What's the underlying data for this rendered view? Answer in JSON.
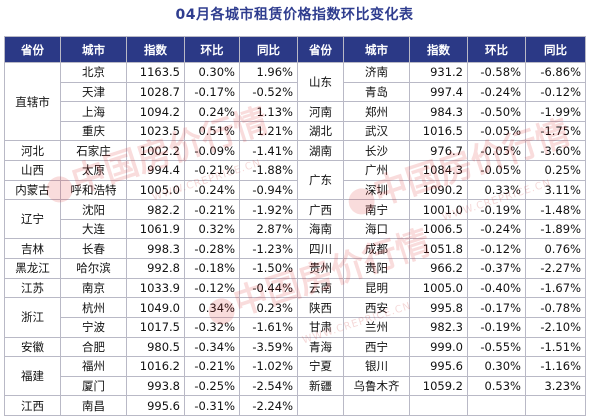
{
  "title": "04月各城市租赁价格指数环比变化表",
  "headers": [
    "省份",
    "城市",
    "指数",
    "环比",
    "同比",
    "省份",
    "城市",
    "指数",
    "环比",
    "同比"
  ],
  "left": [
    [
      "直辖市",
      "北京",
      "1163.5",
      "0.30%",
      "1.96%"
    ],
    [
      "",
      "天津",
      "1028.7",
      "-0.17%",
      "-0.52%"
    ],
    [
      "",
      "上海",
      "1094.2",
      "0.24%",
      "1.13%"
    ],
    [
      "",
      "重庆",
      "1023.5",
      "0.51%",
      "1.21%"
    ],
    [
      "河北",
      "石家庄",
      "1002.2",
      "-0.09%",
      "-1.41%"
    ],
    [
      "山西",
      "太原",
      "994.4",
      "-0.21%",
      "-1.88%"
    ],
    [
      "内蒙古",
      "呼和浩特",
      "1005.0",
      "-0.24%",
      "-0.94%"
    ],
    [
      "辽宁",
      "沈阳",
      "982.2",
      "-0.21%",
      "-1.92%"
    ],
    [
      "",
      "大连",
      "1061.9",
      "0.32%",
      "2.87%"
    ],
    [
      "吉林",
      "长春",
      "998.3",
      "-0.28%",
      "-1.23%"
    ],
    [
      "黑龙江",
      "哈尔滨",
      "992.8",
      "-0.18%",
      "-1.50%"
    ],
    [
      "江苏",
      "南京",
      "1033.9",
      "-0.12%",
      "-0.44%"
    ],
    [
      "浙江",
      "杭州",
      "1049.0",
      "0.34%",
      "0.23%"
    ],
    [
      "",
      "宁波",
      "1017.5",
      "-0.32%",
      "-1.61%"
    ],
    [
      "安徽",
      "合肥",
      "980.5",
      "-0.34%",
      "-3.59%"
    ],
    [
      "福建",
      "福州",
      "1016.2",
      "-0.21%",
      "-1.02%"
    ],
    [
      "",
      "厦门",
      "993.8",
      "-0.25%",
      "-2.54%"
    ],
    [
      "江西",
      "南昌",
      "995.6",
      "-0.31%",
      "-2.24%"
    ]
  ],
  "right": [
    [
      "山东",
      "济南",
      "931.2",
      "-0.58%",
      "-6.86%"
    ],
    [
      "",
      "青岛",
      "997.4",
      "-0.24%",
      "-0.12%"
    ],
    [
      "河南",
      "郑州",
      "984.3",
      "-0.50%",
      "-1.99%"
    ],
    [
      "湖北",
      "武汉",
      "1016.5",
      "-0.05%",
      "-1.75%"
    ],
    [
      "湖南",
      "长沙",
      "976.7",
      "-0.05%",
      "-3.60%"
    ],
    [
      "广东",
      "广州",
      "1084.3",
      "-0.05%",
      "0.25%"
    ],
    [
      "",
      "深圳",
      "1090.2",
      "0.33%",
      "3.11%"
    ],
    [
      "广西",
      "南宁",
      "1001.0",
      "-0.19%",
      "-1.48%"
    ],
    [
      "海南",
      "海口",
      "1006.5",
      "-0.24%",
      "-1.89%"
    ],
    [
      "四川",
      "成都",
      "1051.8",
      "-0.12%",
      "0.76%"
    ],
    [
      "贵州",
      "贵阳",
      "966.2",
      "-0.37%",
      "-2.27%"
    ],
    [
      "云南",
      "昆明",
      "1005.0",
      "-0.40%",
      "-1.67%"
    ],
    [
      "陕西",
      "西安",
      "995.8",
      "-0.17%",
      "-0.78%"
    ],
    [
      "甘肃",
      "兰州",
      "982.3",
      "-0.19%",
      "-2.10%"
    ],
    [
      "青海",
      "西宁",
      "999.0",
      "-0.55%",
      "-1.51%"
    ],
    [
      "宁夏",
      "银川",
      "995.6",
      "0.30%",
      "-1.16%"
    ],
    [
      "新疆",
      "乌鲁木齐",
      "1059.2",
      "0.53%",
      "3.23%"
    ],
    [
      "",
      "",
      "",
      "",
      ""
    ]
  ],
  "left_province_spans": [
    4,
    0,
    0,
    0,
    1,
    1,
    1,
    2,
    0,
    1,
    1,
    1,
    2,
    0,
    1,
    2,
    0,
    1
  ],
  "right_province_spans": [
    2,
    0,
    1,
    1,
    1,
    2,
    0,
    1,
    1,
    1,
    1,
    1,
    1,
    1,
    1,
    1,
    1,
    1
  ],
  "colors": {
    "header_bg": "#2b3986",
    "title": "#2f3d8f",
    "grid": "#b9b9c6"
  }
}
